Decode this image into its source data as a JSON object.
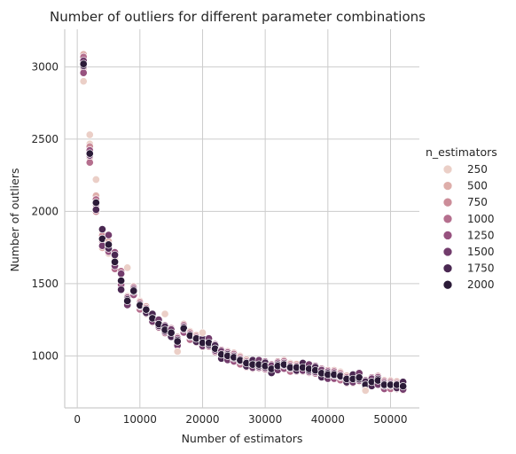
{
  "chart_data": {
    "type": "scatter",
    "title": "Number of outliers for different parameter combinations",
    "xlabel": "Number of estimators",
    "ylabel": "Number of outliers",
    "xlim": [
      -2000,
      54600
    ],
    "ylim": [
      640,
      3260
    ],
    "xticks": [
      0,
      10000,
      20000,
      30000,
      40000,
      50000
    ],
    "yticks": [
      1000,
      1500,
      2000,
      2500,
      3000
    ],
    "grid": true,
    "legend": {
      "title": "n_estimators",
      "position": "right",
      "entries": [
        {
          "label": "250",
          "value": 250,
          "color": "#ebcfc7"
        },
        {
          "label": "500",
          "value": 500,
          "color": "#deaeaa"
        },
        {
          "label": "750",
          "value": 750,
          "color": "#cc8d99"
        },
        {
          "label": "1000",
          "value": 1000,
          "color": "#b56f8e"
        },
        {
          "label": "1250",
          "value": 1250,
          "color": "#97527f"
        },
        {
          "label": "1500",
          "value": 1500,
          "color": "#723c6c"
        },
        {
          "label": "1750",
          "value": 1750,
          "color": "#4a2852"
        },
        {
          "label": "2000",
          "value": 2000,
          "color": "#2b1b38"
        }
      ]
    },
    "curve": [
      [
        1000,
        3020
      ],
      [
        2000,
        2400
      ],
      [
        3000,
        2060
      ],
      [
        4000,
        1810
      ],
      [
        5000,
        1770
      ],
      [
        6000,
        1650
      ],
      [
        7000,
        1520
      ],
      [
        8000,
        1380
      ],
      [
        9000,
        1450
      ],
      [
        10000,
        1350
      ],
      [
        11000,
        1320
      ],
      [
        12000,
        1260
      ],
      [
        13000,
        1220
      ],
      [
        14000,
        1180
      ],
      [
        15000,
        1160
      ],
      [
        16000,
        1100
      ],
      [
        17000,
        1190
      ],
      [
        18000,
        1140
      ],
      [
        19000,
        1120
      ],
      [
        20000,
        1090
      ],
      [
        21000,
        1090
      ],
      [
        22000,
        1050
      ],
      [
        23000,
        1010
      ],
      [
        24000,
        1000
      ],
      [
        25000,
        990
      ],
      [
        26000,
        970
      ],
      [
        27000,
        950
      ],
      [
        28000,
        940
      ],
      [
        29000,
        940
      ],
      [
        30000,
        930
      ],
      [
        31000,
        910
      ],
      [
        32000,
        930
      ],
      [
        33000,
        940
      ],
      [
        34000,
        920
      ],
      [
        35000,
        920
      ],
      [
        36000,
        920
      ],
      [
        37000,
        910
      ],
      [
        38000,
        900
      ],
      [
        39000,
        880
      ],
      [
        40000,
        870
      ],
      [
        41000,
        870
      ],
      [
        42000,
        860
      ],
      [
        43000,
        840
      ],
      [
        44000,
        840
      ],
      [
        45000,
        850
      ],
      [
        46000,
        800
      ],
      [
        47000,
        820
      ],
      [
        48000,
        830
      ],
      [
        49000,
        800
      ],
      [
        50000,
        800
      ],
      [
        51000,
        800
      ],
      [
        52000,
        790
      ]
    ],
    "outliers_250": [
      [
        1000,
        2900
      ],
      [
        2000,
        2530
      ],
      [
        3000,
        2220
      ],
      [
        8000,
        1610
      ],
      [
        14000,
        1290
      ],
      [
        16000,
        1030
      ],
      [
        20000,
        1160
      ],
      [
        46000,
        760
      ]
    ]
  }
}
